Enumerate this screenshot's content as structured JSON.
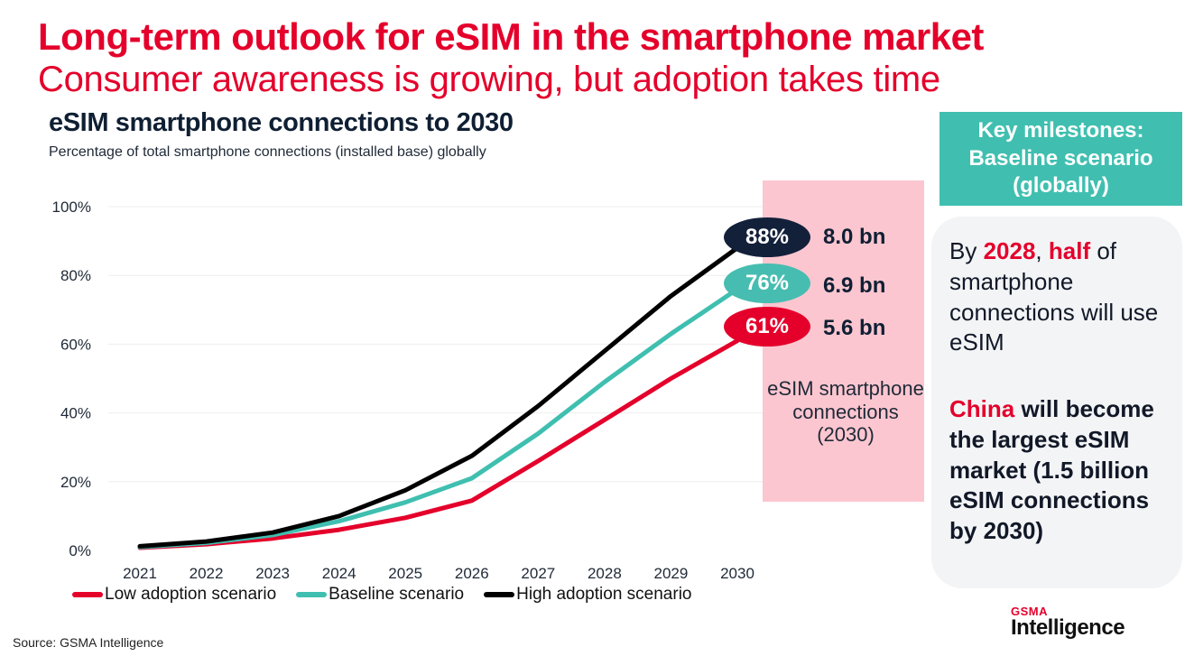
{
  "header": {
    "title": "Long-term outlook for eSIM in the smartphone market",
    "subtitle": "Consumer awareness is growing, but adoption takes time"
  },
  "chart_data": {
    "type": "line",
    "title": "eSIM smartphone connections to 2030",
    "subtitle": "Percentage of total smartphone connections (installed base) globally",
    "xlabel": "",
    "ylabel": "",
    "x": [
      "2021",
      "2022",
      "2023",
      "2024",
      "2025",
      "2026",
      "2027",
      "2028",
      "2029",
      "2030"
    ],
    "ylim": [
      0,
      100
    ],
    "yticks": [
      0,
      20,
      40,
      60,
      80,
      100
    ],
    "ytick_labels": [
      "0%",
      "20%",
      "40%",
      "60%",
      "80%",
      "100%"
    ],
    "grid": true,
    "legend_position": "bottom",
    "series": [
      {
        "name": "Low adoption scenario",
        "color": "#e4002b",
        "values": [
          0.8,
          1.8,
          3.5,
          6,
          9.5,
          14.5,
          26,
          38,
          50,
          61
        ],
        "end_label": "61%",
        "end_connections": "5.6 bn"
      },
      {
        "name": "Baseline scenario",
        "color": "#3fbfb0",
        "values": [
          1,
          2.2,
          4.5,
          8.5,
          14,
          21,
          34,
          49,
          63,
          76
        ],
        "end_label": "76%",
        "end_connections": "6.9 bn"
      },
      {
        "name": "High adoption scenario",
        "color": "#000000",
        "values": [
          1.2,
          2.6,
          5.2,
          10,
          17.5,
          27.5,
          42,
          58,
          74,
          88
        ],
        "end_label": "88%",
        "end_connections": "8.0 bn"
      }
    ],
    "annotation": "eSIM smartphone connections (2030)",
    "bubble_colors": {
      "high": "#13203a",
      "baseline": "#46bdb0",
      "low": "#e4002b"
    }
  },
  "milestones": {
    "heading_lines": [
      "Key milestones:",
      "Baseline scenario",
      "(globally)"
    ],
    "item1": {
      "pre": "By ",
      "year": "2028",
      "comma": ", ",
      "half": "half",
      "post": " of smartphone connections will use eSIM"
    },
    "item2": {
      "china": "China",
      "post": " will become the largest eSIM market (1.5 billion eSIM connections by 2030)"
    }
  },
  "footer": {
    "source": "Source: GSMA Intelligence",
    "logo_top": "GSMA",
    "logo_bottom": "Intelligence"
  }
}
